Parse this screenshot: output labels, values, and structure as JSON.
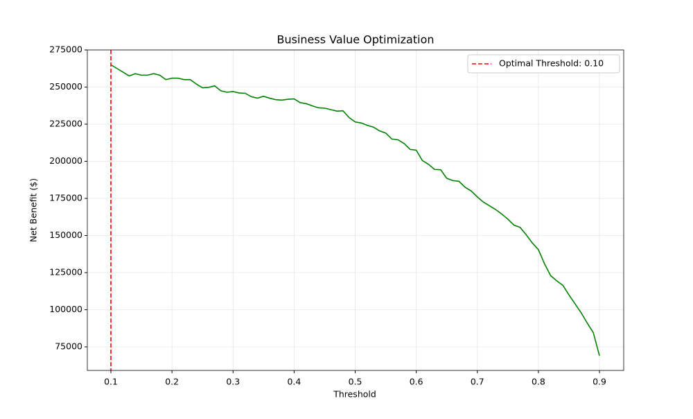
{
  "chart_data": {
    "type": "line",
    "title": "Business Value Optimization",
    "x_label": "Threshold",
    "y_label": "Net Benefit ($)",
    "x": [
      0.1,
      0.11,
      0.12,
      0.13,
      0.14,
      0.15,
      0.16,
      0.17,
      0.18,
      0.19,
      0.2,
      0.21,
      0.22,
      0.23,
      0.24,
      0.25,
      0.26,
      0.27,
      0.28,
      0.29,
      0.3,
      0.31,
      0.32,
      0.33,
      0.34,
      0.35,
      0.36,
      0.37,
      0.38,
      0.39,
      0.4,
      0.41,
      0.42,
      0.43,
      0.44,
      0.45,
      0.46,
      0.47,
      0.48,
      0.49,
      0.5,
      0.51,
      0.52,
      0.53,
      0.54,
      0.55,
      0.56,
      0.57,
      0.58,
      0.59,
      0.6,
      0.61,
      0.62,
      0.63,
      0.64,
      0.65,
      0.66,
      0.67,
      0.68,
      0.69,
      0.7,
      0.71,
      0.72,
      0.73,
      0.74,
      0.75,
      0.76,
      0.77,
      0.78,
      0.79,
      0.8,
      0.81,
      0.82,
      0.83,
      0.84,
      0.85,
      0.86,
      0.87,
      0.88,
      0.89,
      0.9
    ],
    "series": [
      {
        "color": "#008000",
        "values": [
          265000,
          262500,
          260000,
          257500,
          259000,
          258000,
          258000,
          259000,
          258000,
          255000,
          256000,
          256000,
          255000,
          255000,
          252000,
          249500,
          249800,
          250800,
          247500,
          246500,
          247000,
          246000,
          245800,
          243500,
          242500,
          243800,
          242500,
          241500,
          241200,
          241800,
          242000,
          239500,
          238800,
          237300,
          236000,
          235800,
          234800,
          233800,
          234000,
          229500,
          226500,
          225800,
          224200,
          223000,
          220500,
          219000,
          215000,
          214500,
          212000,
          208000,
          207500,
          200500,
          198000,
          194500,
          194300,
          188500,
          187000,
          186500,
          182500,
          180000,
          176000,
          172500,
          170000,
          167500,
          164500,
          161000,
          157000,
          155500,
          150500,
          145000,
          140500,
          131000,
          123000,
          119500,
          116500,
          110000,
          104000,
          98000,
          91000,
          84500,
          69000
        ]
      }
    ],
    "vline": {
      "x": 0.1,
      "color": "#ff0000",
      "label": "Optimal Threshold: 0.10"
    },
    "xlim": [
      0.0614,
      0.9397
    ],
    "ylim": [
      59100,
      275000
    ],
    "xticks": [
      0.1,
      0.2,
      0.3,
      0.4,
      0.5,
      0.6,
      0.7,
      0.8,
      0.9
    ],
    "yticks": [
      75000,
      100000,
      125000,
      150000,
      175000,
      200000,
      225000,
      250000,
      275000
    ],
    "grid": true,
    "legend": "upper right"
  }
}
